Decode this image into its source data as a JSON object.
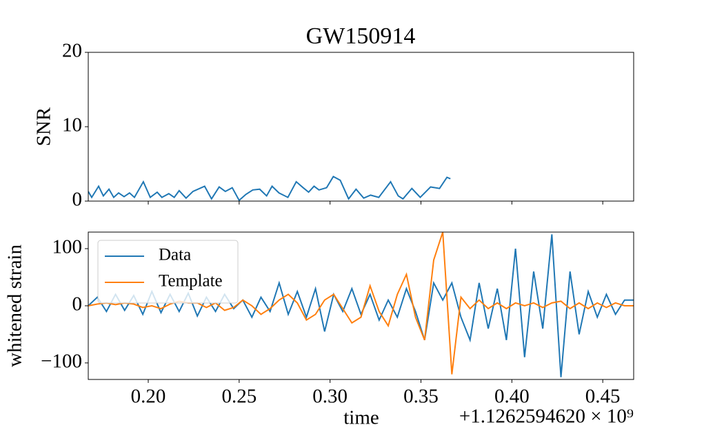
{
  "chart_data": [
    {
      "type": "line",
      "title": "GW150914",
      "ylabel": "SNR",
      "color": "#1f77b4",
      "x": [
        0.167,
        0.1689,
        0.1727,
        0.1753,
        0.1784,
        0.181,
        0.1837,
        0.1867,
        0.1897,
        0.1924,
        0.1973,
        0.2011,
        0.2049,
        0.2075,
        0.2113,
        0.2143,
        0.217,
        0.2208,
        0.2246,
        0.231,
        0.2348,
        0.239,
        0.2424,
        0.2462,
        0.25,
        0.2537,
        0.2575,
        0.2613,
        0.2651,
        0.2681,
        0.2719,
        0.2768,
        0.2814,
        0.2852,
        0.2882,
        0.2912,
        0.2939,
        0.2981,
        0.3018,
        0.3056,
        0.3102,
        0.3143,
        0.3185,
        0.3223,
        0.3268,
        0.3333,
        0.3375,
        0.3401,
        0.345,
        0.3496,
        0.3553,
        0.3602,
        0.3643,
        0.3662
      ],
      "values": [
        1.3,
        0.5,
        2.0,
        0.7,
        1.6,
        0.5,
        1.1,
        0.6,
        1.1,
        0.5,
        2.6,
        0.5,
        1.2,
        0.5,
        1.0,
        0.5,
        1.4,
        0.4,
        1.3,
        2.0,
        0.3,
        1.9,
        1.3,
        1.8,
        0.1,
        0.9,
        1.5,
        1.6,
        0.7,
        2.0,
        1.1,
        0.5,
        2.6,
        1.8,
        1.2,
        2.0,
        1.5,
        1.8,
        3.3,
        2.8,
        0.3,
        1.6,
        0.4,
        0.8,
        0.5,
        2.6,
        0.7,
        0.3,
        1.7,
        0.5,
        1.9,
        1.7,
        3.2,
        3.0
      ],
      "xlim": [
        0.167,
        0.467
      ],
      "xticks": [
        0.2,
        0.25,
        0.3,
        0.35,
        0.4,
        0.45
      ],
      "ylim": [
        0,
        20
      ],
      "yticks": [
        0,
        10,
        20
      ]
    },
    {
      "type": "line",
      "ylabel": "whitened strain",
      "xlabel": "time",
      "x_offset_label": "+1.1262594620 × 10⁹",
      "legend": "upper left",
      "x": [
        0.167,
        0.172,
        0.177,
        0.182,
        0.187,
        0.192,
        0.197,
        0.202,
        0.207,
        0.212,
        0.217,
        0.222,
        0.227,
        0.232,
        0.237,
        0.242,
        0.247,
        0.252,
        0.257,
        0.262,
        0.267,
        0.272,
        0.277,
        0.282,
        0.287,
        0.292,
        0.297,
        0.302,
        0.307,
        0.312,
        0.317,
        0.322,
        0.327,
        0.332,
        0.337,
        0.342,
        0.347,
        0.352,
        0.357,
        0.362,
        0.367,
        0.372,
        0.377,
        0.382,
        0.387,
        0.392,
        0.397,
        0.402,
        0.407,
        0.412,
        0.417,
        0.422,
        0.427,
        0.432,
        0.437,
        0.442,
        0.447,
        0.452,
        0.457,
        0.462,
        0.467
      ],
      "series": [
        {
          "name": "Data",
          "color": "#1f77b4",
          "values": [
            0,
            15,
            -10,
            20,
            -8,
            18,
            -15,
            25,
            -12,
            20,
            -10,
            22,
            -18,
            15,
            -10,
            20,
            -5,
            10,
            -20,
            15,
            -10,
            40,
            -15,
            25,
            -20,
            30,
            -45,
            20,
            -10,
            30,
            -15,
            20,
            -25,
            10,
            -20,
            30,
            -10,
            -60,
            40,
            10,
            40,
            -20,
            -60,
            40,
            -40,
            30,
            -60,
            100,
            -90,
            60,
            -40,
            125,
            -125,
            60,
            -50,
            25,
            -20,
            20,
            -15,
            10,
            10
          ]
        },
        {
          "name": "Template",
          "color": "#ff7f0e",
          "values": [
            0,
            3,
            5,
            2,
            5,
            3,
            -3,
            0,
            -5,
            3,
            8,
            5,
            5,
            -3,
            5,
            -8,
            -3,
            10,
            0,
            -15,
            -5,
            10,
            20,
            5,
            -25,
            -15,
            10,
            20,
            -5,
            -30,
            -20,
            35,
            -10,
            -35,
            20,
            55,
            -20,
            -60,
            80,
            129,
            -120,
            15,
            -5,
            10,
            -5,
            5,
            -5,
            5,
            0,
            5,
            -3,
            5,
            8,
            -5,
            5,
            -5,
            5,
            -3,
            5,
            0,
            0
          ]
        }
      ],
      "xlim": [
        0.167,
        0.467
      ],
      "xticks": [
        {
          "value": 0.2,
          "label": "0.20"
        },
        {
          "value": 0.25,
          "label": "0.25"
        },
        {
          "value": 0.3,
          "label": "0.30"
        },
        {
          "value": 0.35,
          "label": "0.35"
        },
        {
          "value": 0.4,
          "label": "0.40"
        },
        {
          "value": 0.45,
          "label": "0.45"
        }
      ],
      "ylim": [
        -129,
        129
      ],
      "yticks": [
        {
          "value": -100,
          "label": "−100"
        },
        0,
        100
      ]
    }
  ]
}
